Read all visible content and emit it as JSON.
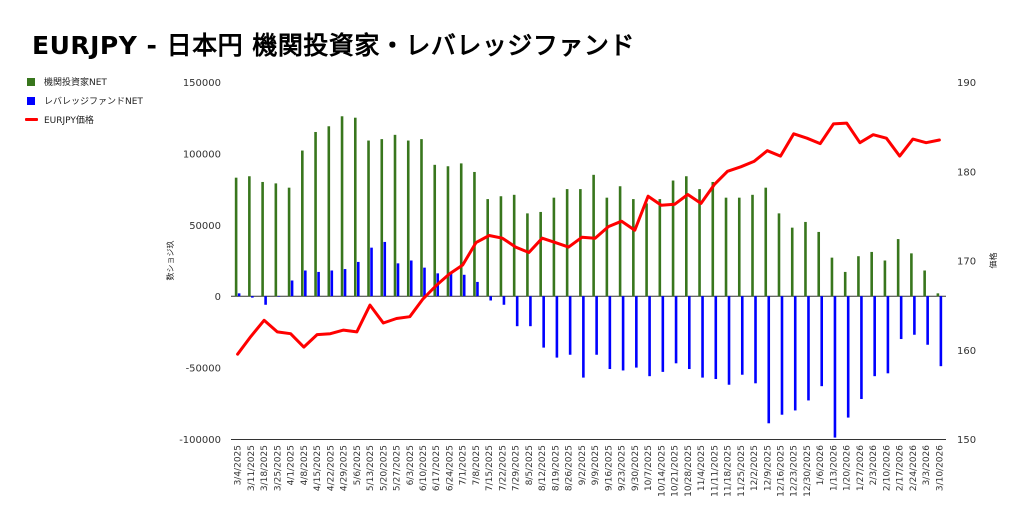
{
  "title": "EURJPY - 日本円 機関投資家・レバレッジファンド",
  "legend": [
    {
      "label": "機関投資家NET",
      "color": "#38761d",
      "shape": "box"
    },
    {
      "label": "レバレッジファンドNET",
      "color": "#0000ff",
      "shape": "box"
    },
    {
      "label": "EURJPY価格",
      "color": "#ff0000",
      "shape": "line"
    }
  ],
  "chart_data": {
    "type": "bar",
    "title": "EURJPY - 日本円 機関投資家・レバレッジファンド",
    "ylabel": "数ショジ玖",
    "y2label": "価格",
    "ylim": [
      -100000,
      150000
    ],
    "y2lim": [
      150,
      190
    ],
    "yticks": [
      "150000",
      "100000",
      "50000",
      "0",
      "-50000",
      "-100000"
    ],
    "y2ticks": [
      "190",
      "180",
      "170",
      "160",
      "150"
    ],
    "legend_position": "left",
    "grid": false,
    "categories": [
      "3/4/2025",
      "3/11/2025",
      "3/18/2025",
      "3/25/2025",
      "4/1/2025",
      "4/8/2025",
      "4/15/2025",
      "4/22/2025",
      "4/29/2025",
      "5/6/2025",
      "5/13/2025",
      "5/20/2025",
      "5/27/2025",
      "6/3/2025",
      "6/10/2025",
      "6/17/2025",
      "6/24/2025",
      "7/1/2025",
      "7/8/2025",
      "7/15/2025",
      "7/22/2025",
      "7/29/2025",
      "8/5/2025",
      "8/12/2025",
      "8/19/2025",
      "8/26/2025",
      "9/2/2025",
      "9/9/2025",
      "9/16/2025",
      "9/23/2025",
      "9/30/2025",
      "10/7/2025",
      "10/14/2025",
      "10/21/2025",
      "10/28/2025",
      "11/4/2025",
      "11/11/2025",
      "11/18/2025",
      "11/25/2025",
      "12/2/2025",
      "12/9/2025",
      "12/16/2025",
      "12/23/2025",
      "12/30/2025",
      "1/6/2026",
      "1/13/2026",
      "1/20/2026",
      "1/27/2026",
      "2/3/2026",
      "2/10/2026",
      "2/17/2026",
      "2/24/2026",
      "3/3/2026",
      "3/10/2026"
    ],
    "series": [
      {
        "name": "機関投資家NET",
        "type": "bar",
        "color": "#38761d",
        "values": [
          83000,
          84000,
          80000,
          79000,
          76000,
          102000,
          115000,
          119000,
          126000,
          125000,
          109000,
          110000,
          113000,
          109000,
          110000,
          92000,
          91000,
          93000,
          87000,
          68000,
          70000,
          71000,
          58000,
          59000,
          69000,
          75000,
          75000,
          85000,
          69000,
          77000,
          68000,
          65000,
          68000,
          81000,
          84000,
          75000,
          80000,
          69000,
          69000,
          71000,
          76000,
          58000,
          48000,
          52000,
          45000,
          27000,
          17000,
          28000,
          31000,
          25000,
          40000,
          30000,
          18000,
          2000
        ]
      },
      {
        "name": "レバレッジファンドNET",
        "type": "bar",
        "color": "#0000ff",
        "values": [
          2000,
          -1000,
          -6000,
          0,
          11000,
          18000,
          17000,
          18000,
          19000,
          24000,
          34000,
          38000,
          23000,
          25000,
          20000,
          16000,
          17000,
          15000,
          10000,
          -3000,
          -6000,
          -21000,
          -21000,
          -36000,
          -43000,
          -41000,
          -57000,
          -41000,
          -51000,
          -52000,
          -50000,
          -56000,
          -53000,
          -47000,
          -51000,
          -57000,
          -58000,
          -62000,
          -55000,
          -61000,
          -89000,
          -83000,
          -80000,
          -73000,
          -63000,
          -99000,
          -85000,
          -72000,
          -56000,
          -54000,
          -30000,
          -27000,
          -34000,
          -49000
        ]
      },
      {
        "name": "EURJPY価格",
        "type": "line",
        "color": "#ff0000",
        "axis": "right",
        "values": [
          159.5,
          161.5,
          163.3,
          162.0,
          161.8,
          160.3,
          161.7,
          161.8,
          162.2,
          162.0,
          165.0,
          163.0,
          163.5,
          163.7,
          165.7,
          167.2,
          168.5,
          169.5,
          172.0,
          172.8,
          172.5,
          171.5,
          170.9,
          172.5,
          172.0,
          171.5,
          172.6,
          172.5,
          173.8,
          174.4,
          173.4,
          177.2,
          176.2,
          176.3,
          177.4,
          176.4,
          178.5,
          180.0,
          180.5,
          181.1,
          182.3,
          181.7,
          184.2,
          183.7,
          183.1,
          185.3,
          185.4,
          183.2,
          184.1,
          183.7,
          181.7,
          183.6,
          183.2,
          183.5
        ]
      }
    ]
  }
}
